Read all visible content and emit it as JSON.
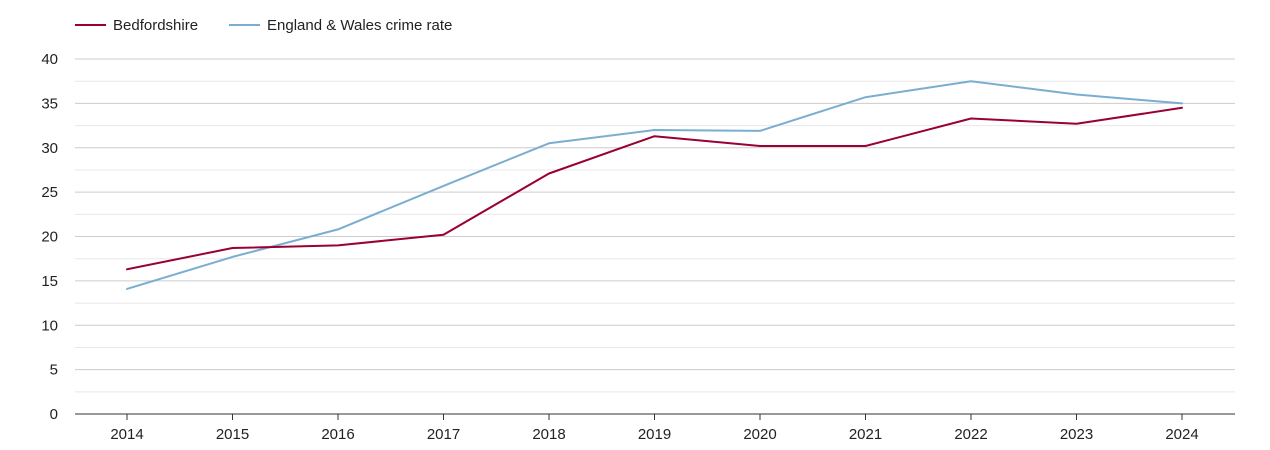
{
  "chart_data": {
    "type": "line",
    "title": "",
    "xlabel": "",
    "ylabel": "",
    "categories": [
      "2014",
      "2015",
      "2016",
      "2017",
      "2018",
      "2019",
      "2020",
      "2021",
      "2022",
      "2023",
      "2024"
    ],
    "yticks": [
      "0",
      "5",
      "10",
      "15",
      "20",
      "25",
      "30",
      "35",
      "40"
    ],
    "ylim": [
      0,
      40
    ],
    "grid": true,
    "legend_position": "top-left",
    "series": [
      {
        "name": "Bedfordshire",
        "color": "#990033",
        "values": [
          16.3,
          18.7,
          19.0,
          20.2,
          27.1,
          31.3,
          30.2,
          30.2,
          33.3,
          32.7,
          34.5
        ]
      },
      {
        "name": "England & Wales crime rate",
        "color": "#7aaed0",
        "values": [
          14.1,
          17.7,
          20.8,
          25.7,
          30.5,
          32.0,
          31.9,
          35.7,
          37.5,
          36.0,
          35.0
        ]
      }
    ]
  }
}
